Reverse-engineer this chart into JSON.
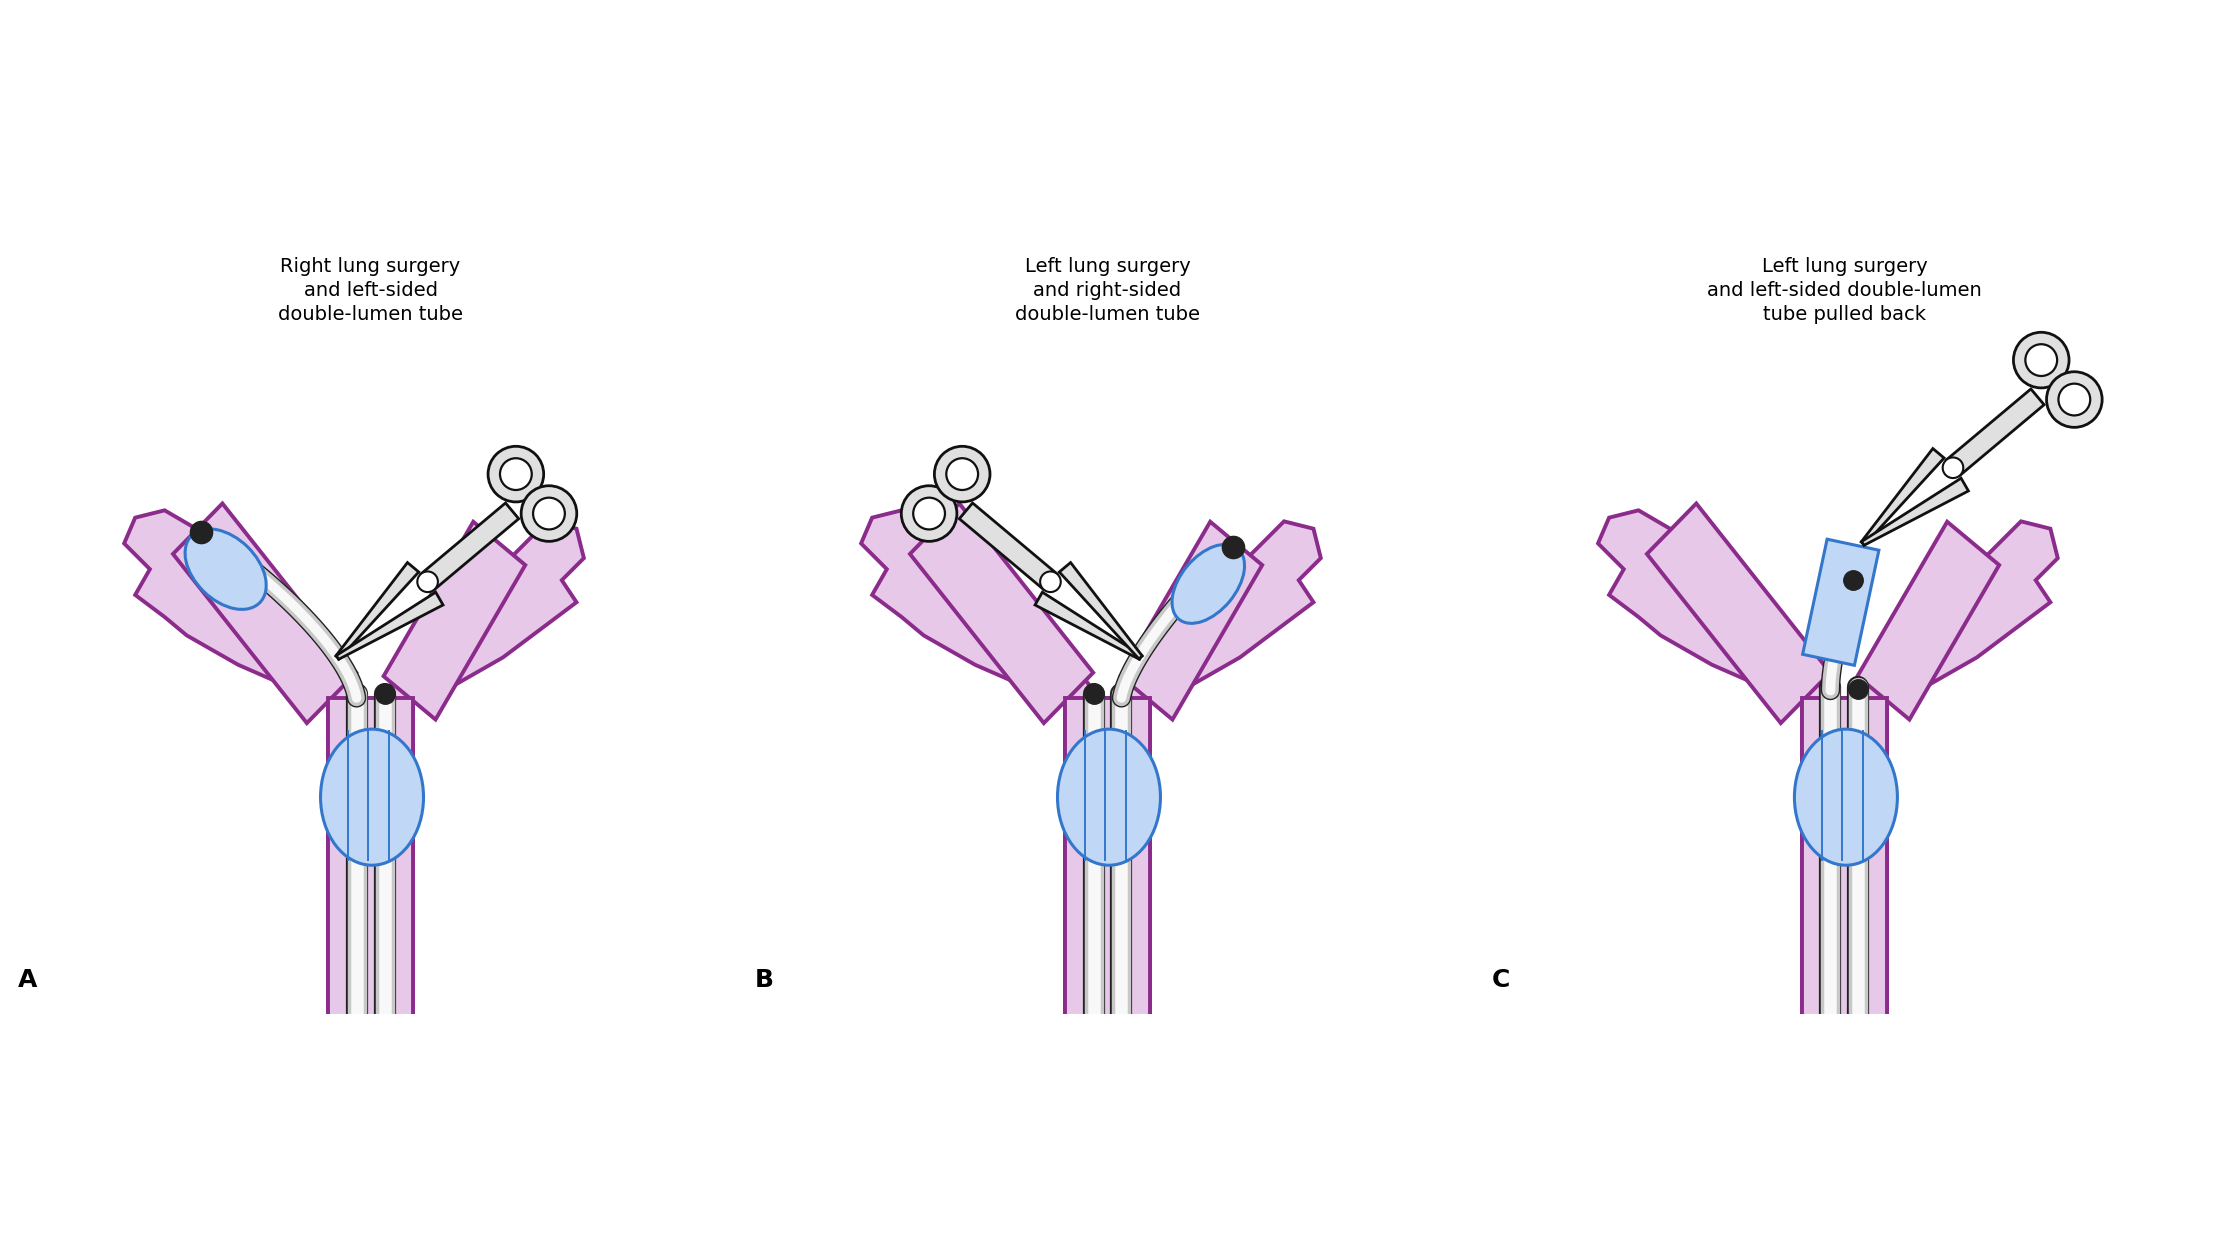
{
  "bg_color": "#ffffff",
  "lung_fill": "#e8c8e8",
  "lung_stroke": "#8B2B8B",
  "tube_outer": "#c8c8c8",
  "tube_inner": "#f8f8f8",
  "tube_stroke": "#222222",
  "cuff_fill": "#c0d8f5",
  "cuff_stroke": "#3377cc",
  "clamp_fill": "#e0e0e0",
  "clamp_stroke": "#111111",
  "tip_color": "#222222",
  "titles": [
    "Right lung surgery\nand left-sided\ndouble-lumen tube",
    "Left lung surgery\nand right-sided\ndouble-lumen tube",
    "Left lung surgery\nand left-sided double-lumen\ntube pulled back"
  ],
  "labels": [
    "A",
    "B",
    "C"
  ]
}
